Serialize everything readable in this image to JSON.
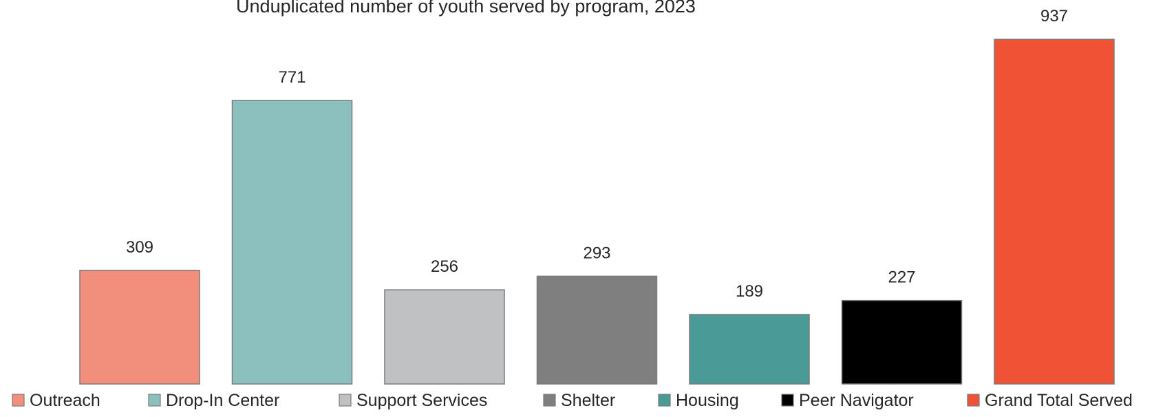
{
  "chart_data": {
    "type": "bar",
    "title": "Unduplicated number of youth served by program, 2023",
    "xlabel": "",
    "ylabel": "",
    "ylim": [
      0,
      1000
    ],
    "grid": false,
    "legend_position": "bottom",
    "categories": [
      "Outreach",
      "Drop-In Center",
      "Support Services",
      "Shelter",
      "Housing",
      "Peer Navigator",
      "Grand Total Served"
    ],
    "values": [
      309,
      771,
      256,
      293,
      189,
      227,
      937
    ],
    "colors": [
      "#f28e7c",
      "#8bc0bf",
      "#c0c1c3",
      "#7f7f7f",
      "#4a9a98",
      "#000000",
      "#ef5234"
    ]
  }
}
